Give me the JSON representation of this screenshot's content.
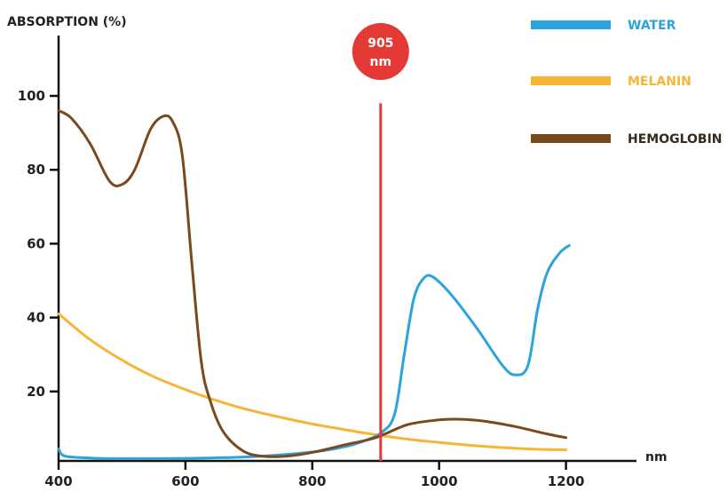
{
  "chart_data": {
    "type": "line",
    "ylabel": "ABSORPTION (%)",
    "xlabel": "nm",
    "xlim": [
      400,
      1270
    ],
    "ylim": [
      0,
      115
    ],
    "x_ticks": [
      400,
      600,
      800,
      1000,
      1200
    ],
    "y_ticks": [
      20,
      40,
      60,
      80,
      100
    ],
    "legend_position": "top-right",
    "marker": {
      "value": 905,
      "label_line1": "905",
      "label_line2": "nm",
      "color": "#e53935",
      "top_y": 98
    },
    "series": [
      {
        "name": "WATER",
        "color": "#2ba3dc",
        "points": [
          [
            400,
            4.5
          ],
          [
            410,
            2.5
          ],
          [
            450,
            2
          ],
          [
            500,
            1.8
          ],
          [
            600,
            1.9
          ],
          [
            700,
            2.3
          ],
          [
            800,
            3.6
          ],
          [
            850,
            5
          ],
          [
            880,
            6.5
          ],
          [
            910,
            9
          ],
          [
            930,
            14
          ],
          [
            945,
            30
          ],
          [
            960,
            45
          ],
          [
            975,
            50.5
          ],
          [
            990,
            51
          ],
          [
            1020,
            46
          ],
          [
            1060,
            37
          ],
          [
            1100,
            27
          ],
          [
            1120,
            24.5
          ],
          [
            1140,
            27
          ],
          [
            1155,
            42
          ],
          [
            1170,
            52
          ],
          [
            1190,
            57.5
          ],
          [
            1205,
            59.5
          ]
        ]
      },
      {
        "name": "MELANIN",
        "color": "#f7b538",
        "points": [
          [
            400,
            41
          ],
          [
            450,
            34
          ],
          [
            500,
            28.5
          ],
          [
            550,
            24
          ],
          [
            600,
            20.5
          ],
          [
            650,
            17.5
          ],
          [
            700,
            15
          ],
          [
            750,
            13
          ],
          [
            800,
            11.2
          ],
          [
            850,
            9.7
          ],
          [
            900,
            8.3
          ],
          [
            950,
            7.1
          ],
          [
            1000,
            6.2
          ],
          [
            1050,
            5.4
          ],
          [
            1100,
            4.8
          ],
          [
            1150,
            4.4
          ],
          [
            1200,
            4.2
          ]
        ]
      },
      {
        "name": "HEMOGLOBIN",
        "color": "#7a4a1e",
        "points": [
          [
            400,
            96
          ],
          [
            420,
            94
          ],
          [
            450,
            87
          ],
          [
            480,
            77
          ],
          [
            500,
            76
          ],
          [
            520,
            80
          ],
          [
            545,
            91
          ],
          [
            565,
            94.5
          ],
          [
            580,
            93
          ],
          [
            595,
            84
          ],
          [
            610,
            55
          ],
          [
            625,
            28
          ],
          [
            640,
            17
          ],
          [
            660,
            9
          ],
          [
            690,
            4
          ],
          [
            720,
            2.5
          ],
          [
            760,
            2.5
          ],
          [
            800,
            3.5
          ],
          [
            850,
            5.5
          ],
          [
            900,
            7.5
          ],
          [
            950,
            11
          ],
          [
            1000,
            12.3
          ],
          [
            1030,
            12.5
          ],
          [
            1070,
            12
          ],
          [
            1120,
            10.5
          ],
          [
            1170,
            8.5
          ],
          [
            1200,
            7.5
          ]
        ]
      }
    ]
  }
}
